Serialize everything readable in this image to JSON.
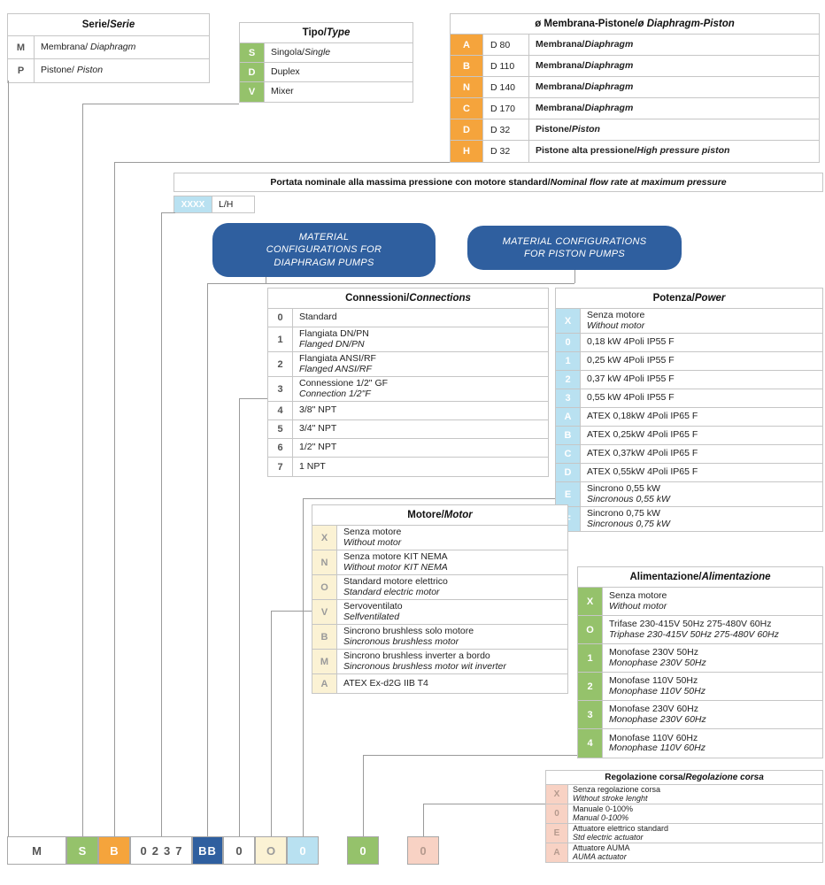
{
  "colors": {
    "white": "#FFFFFF",
    "orange": "#F5A43C",
    "green": "#95C26B",
    "light_blue": "#B9E1F1",
    "cream": "#FBF2D4",
    "pink": "#F8D2C4",
    "blue": "#2F5F9F",
    "border": "#C6C6C6"
  },
  "tables": {
    "serie": {
      "title": "Serie/",
      "title_i": "Serie",
      "code_style": "white",
      "rows": [
        {
          "code": "M",
          "l1": "Membrana/ ",
          "l1i": "Diaphragm"
        },
        {
          "code": "P",
          "l1": "Pistone/ ",
          "l1i": "Piston"
        }
      ]
    },
    "tipo": {
      "title": "Tipo/",
      "title_i": "Type",
      "code_style": "green",
      "rows": [
        {
          "code": "S",
          "l1": "Singola/",
          "l1i": "Single"
        },
        {
          "code": "D",
          "l1": "Duplex"
        },
        {
          "code": "V",
          "l1": "Mixer"
        }
      ]
    },
    "membrana": {
      "title": "ø Membrana-Pistone/",
      "title_i": "ø Diaphragm-Piston",
      "code_style": "orange",
      "rows": [
        {
          "code": "A",
          "d": "D 80",
          "l1": "Membrana/",
          "l1i": "Diaphragm"
        },
        {
          "code": "B",
          "d": "D 110",
          "l1": "Membrana/",
          "l1i": "Diaphragm"
        },
        {
          "code": "N",
          "d": "D 140",
          "l1": "Membrana/",
          "l1i": "Diaphragm"
        },
        {
          "code": "C",
          "d": "D 170",
          "l1": "Membrana/",
          "l1i": "Diaphragm"
        },
        {
          "code": "D",
          "d": "D 32",
          "l1": "Pistone/",
          "l1i": "Piston"
        },
        {
          "code": "H",
          "d": "D 32",
          "l1": "Pistone alta pressione/",
          "l1i": "High pressure piston"
        }
      ]
    },
    "connessioni": {
      "title": "Connessioni/",
      "title_i": "Connections",
      "code_style": "white",
      "rows": [
        {
          "code": "0",
          "l1": "Standard"
        },
        {
          "code": "1",
          "l1": "Flangiata DN/PN",
          "l2i": "Flanged DN/PN"
        },
        {
          "code": "2",
          "l1": "Flangiata ANSI/RF",
          "l2i": "Flanged ANSI/RF"
        },
        {
          "code": "3",
          "l1": "Connessione 1/2\" GF",
          "l2i": "Connection 1/2\"F"
        },
        {
          "code": "4",
          "l1": "3/8\" NPT"
        },
        {
          "code": "5",
          "l1": "3/4\" NPT"
        },
        {
          "code": "6",
          "l1": "1/2\" NPT"
        },
        {
          "code": "7",
          "l1": "1 NPT"
        }
      ]
    },
    "potenza": {
      "title": "Potenza/",
      "title_i": "Power",
      "code_style": "light_blue",
      "rows": [
        {
          "code": "X",
          "l1": "Senza motore",
          "l2i": "Without motor"
        },
        {
          "code": "0",
          "l1": "0,18 kW 4Poli IP55 F"
        },
        {
          "code": "1",
          "l1": "0,25 kW 4Poli IP55 F"
        },
        {
          "code": "2",
          "l1": "0,37 kW 4Poli IP55 F"
        },
        {
          "code": "3",
          "l1": "0,55 kW 4Poli IP55 F"
        },
        {
          "code": "A",
          "l1": "ATEX 0,18kW 4Poli IP65 F"
        },
        {
          "code": "B",
          "l1": "ATEX 0,25kW 4Poli IP65 F"
        },
        {
          "code": "C",
          "l1": "ATEX 0,37kW 4Poli IP65 F"
        },
        {
          "code": "D",
          "l1": "ATEX 0,55kW 4Poli IP65 F"
        },
        {
          "code": "E",
          "l1": "Sincrono 0,55 kW",
          "l2i": "Sincronous 0,55 kW"
        },
        {
          "code": "F",
          "l1": "Sincrono 0,75 kW",
          "l2i": "Sincronous 0,75 kW"
        }
      ]
    },
    "motore": {
      "title": "Motore/",
      "title_i": "Motor",
      "code_style": "cream",
      "rows": [
        {
          "code": "X",
          "l1": "Senza motore",
          "l2i": "Without motor"
        },
        {
          "code": "N",
          "l1": "Senza motore KIT NEMA",
          "l2i": "Without motor KIT NEMA"
        },
        {
          "code": "O",
          "l1": "Standard motore elettrico",
          "l2i": "Standard electric motor"
        },
        {
          "code": "V",
          "l1": "Servoventilato",
          "l2i": "Selfventilated"
        },
        {
          "code": "B",
          "l1": "Sincrono brushless solo motore",
          "l2i": "Sincronous brushless motor"
        },
        {
          "code": "M",
          "l1": "Sincrono brushless inverter a bordo",
          "l2i": "Sincronous brushless motor wit inverter"
        },
        {
          "code": "A",
          "l1": "ATEX Ex-d2G IIB T4"
        }
      ]
    },
    "alimentazione": {
      "title": "Alimentazione/",
      "title_i": "Alimentazione",
      "code_style": "green",
      "rows": [
        {
          "code": "X",
          "l1": "Senza motore",
          "l2i": "Without motor"
        },
        {
          "code": "O",
          "l1": "Trifase 230-415V 50Hz 275-480V 60Hz",
          "l2i": "Triphase 230-415V 50Hz 275-480V 60Hz"
        },
        {
          "code": "1",
          "l1": "Monofase 230V 50Hz",
          "l2i": "Monophase 230V 50Hz"
        },
        {
          "code": "2",
          "l1": "Monofase 110V 50Hz",
          "l2i": "Monophase 110V 50Hz"
        },
        {
          "code": "3",
          "l1": "Monofase 230V 60Hz",
          "l2i": "Monophase 230V 60Hz"
        },
        {
          "code": "4",
          "l1": "Monofase 110V 60Hz",
          "l2i": "Monophase 110V 60Hz"
        }
      ]
    },
    "regolazione": {
      "title": "Regolazione corsa/",
      "title_i": "Regolazione corsa",
      "code_style": "pink",
      "rows": [
        {
          "code": "X",
          "l1": "Senza regolazione corsa",
          "l2i": "Without stroke lenght"
        },
        {
          "code": "0",
          "l1": "Manuale 0-100%",
          "l2i": "Manual 0-100%"
        },
        {
          "code": "E",
          "l1": "Attuatore elettrico standard",
          "l2i": "Std electric actuator"
        },
        {
          "code": "A",
          "l1": "Attuatore AUMA",
          "l2i": "AUMA actuator"
        }
      ]
    }
  },
  "portata": {
    "title": "Portata nominale alla massima pressione con motore standard/ ",
    "title_i": "Nominal flow rate at maximum pressure",
    "code": "XXXX",
    "unit": "L/H"
  },
  "badges": {
    "diaphragm": {
      "line1": "MATERIAL",
      "line2": "CONFIGURATIONS FOR",
      "line3": "DIAPHRAGM PUMPS"
    },
    "piston": {
      "line1": "MATERIAL CONFIGURATIONS",
      "line2": "FOR PISTON PUMPS"
    }
  },
  "code_row": [
    {
      "value": "M",
      "style": "white"
    },
    {
      "value": "S",
      "style": "green"
    },
    {
      "value": "B",
      "style": "orange"
    },
    {
      "value": "0237",
      "style": "white"
    },
    {
      "value": "BB",
      "style": "blue"
    },
    {
      "value": "0",
      "style": "white"
    },
    {
      "value": "O",
      "style": "cream"
    },
    {
      "value": "0",
      "style": "light_blue"
    },
    {
      "value": "0",
      "style": "green"
    },
    {
      "value": "0",
      "style": "pink"
    }
  ]
}
